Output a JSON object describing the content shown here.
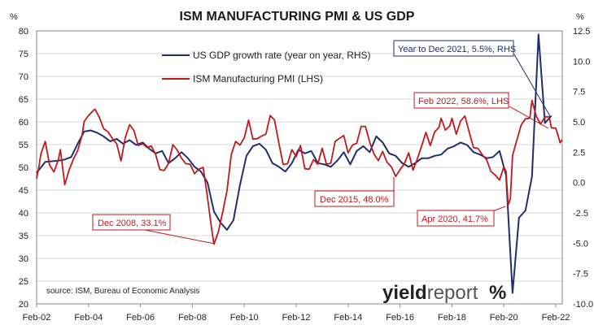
{
  "chart_data": {
    "type": "line",
    "title": "ISM MANUFACTURING PMI & US GDP",
    "left_unit": "%",
    "right_unit": "%",
    "x_labels": [
      "Feb-02",
      "Feb-04",
      "Feb-06",
      "Feb-08",
      "Feb-10",
      "Feb-12",
      "Feb-14",
      "Feb-16",
      "Feb-18",
      "Feb-20",
      "Feb-22"
    ],
    "x_range": [
      "2002-02",
      "2022-05"
    ],
    "ylim_left": [
      20,
      80
    ],
    "yticks_left": [
      20,
      25,
      30,
      35,
      40,
      45,
      50,
      55,
      60,
      65,
      70,
      75,
      80
    ],
    "ylim_right": [
      -10,
      12.5
    ],
    "yticks_right": [
      "-10.0",
      "-7.5",
      "-5.0",
      "-2.5",
      "0.0",
      "2.5",
      "5.0",
      "7.5",
      "10.0",
      "12.5"
    ],
    "grid": true,
    "series": [
      {
        "name": "US GDP growth rate (year on year, RHS)",
        "axis": "right",
        "color": "#1f2f6b",
        "points": [
          [
            "2002-02",
            0.8
          ],
          [
            "2002-06",
            1.7
          ],
          [
            "2002-12",
            1.8
          ],
          [
            "2003-03",
            1.9
          ],
          [
            "2003-06",
            2.1
          ],
          [
            "2003-09",
            3.2
          ],
          [
            "2003-12",
            4.2
          ],
          [
            "2004-03",
            4.3
          ],
          [
            "2004-06",
            4.1
          ],
          [
            "2004-09",
            3.8
          ],
          [
            "2004-12",
            3.4
          ],
          [
            "2005-03",
            3.6
          ],
          [
            "2005-06",
            3.2
          ],
          [
            "2005-09",
            3.5
          ],
          [
            "2005-12",
            3.1
          ],
          [
            "2006-03",
            3.3
          ],
          [
            "2006-06",
            2.8
          ],
          [
            "2006-09",
            2.4
          ],
          [
            "2006-12",
            2.6
          ],
          [
            "2007-03",
            1.6
          ],
          [
            "2007-06",
            2.0
          ],
          [
            "2007-09",
            2.5
          ],
          [
            "2007-12",
            2.0
          ],
          [
            "2008-03",
            1.3
          ],
          [
            "2008-06",
            0.9
          ],
          [
            "2008-09",
            0.0
          ],
          [
            "2008-12",
            -2.4
          ],
          [
            "2009-03",
            -3.3
          ],
          [
            "2009-06",
            -3.9
          ],
          [
            "2009-09",
            -3.1
          ],
          [
            "2009-12",
            -0.2
          ],
          [
            "2010-03",
            2.2
          ],
          [
            "2010-06",
            3.0
          ],
          [
            "2010-09",
            3.2
          ],
          [
            "2010-12",
            2.7
          ],
          [
            "2011-03",
            1.6
          ],
          [
            "2011-06",
            1.3
          ],
          [
            "2011-09",
            0.9
          ],
          [
            "2011-12",
            1.6
          ],
          [
            "2012-03",
            2.7
          ],
          [
            "2012-06",
            2.4
          ],
          [
            "2012-09",
            2.6
          ],
          [
            "2012-12",
            1.6
          ],
          [
            "2013-03",
            1.5
          ],
          [
            "2013-06",
            1.3
          ],
          [
            "2013-09",
            1.8
          ],
          [
            "2013-12",
            2.5
          ],
          [
            "2014-03",
            1.5
          ],
          [
            "2014-06",
            2.6
          ],
          [
            "2014-09",
            3.0
          ],
          [
            "2014-12",
            2.5
          ],
          [
            "2015-03",
            3.8
          ],
          [
            "2015-06",
            3.3
          ],
          [
            "2015-09",
            2.4
          ],
          [
            "2015-12",
            2.2
          ],
          [
            "2016-03",
            1.6
          ],
          [
            "2016-06",
            1.3
          ],
          [
            "2016-09",
            1.6
          ],
          [
            "2016-12",
            2.0
          ],
          [
            "2017-03",
            2.0
          ],
          [
            "2017-06",
            2.2
          ],
          [
            "2017-09",
            2.3
          ],
          [
            "2017-12",
            2.8
          ],
          [
            "2018-03",
            3.0
          ],
          [
            "2018-06",
            3.3
          ],
          [
            "2018-09",
            3.1
          ],
          [
            "2018-12",
            2.5
          ],
          [
            "2019-03",
            2.3
          ],
          [
            "2019-06",
            2.0
          ],
          [
            "2019-09",
            2.1
          ],
          [
            "2019-12",
            2.6
          ],
          [
            "2020-03",
            0.6
          ],
          [
            "2020-06",
            -9.1
          ],
          [
            "2020-09",
            -2.9
          ],
          [
            "2020-12",
            -2.3
          ],
          [
            "2021-03",
            0.5
          ],
          [
            "2021-06",
            12.2
          ],
          [
            "2021-09",
            4.9
          ],
          [
            "2021-12",
            5.5
          ]
        ]
      },
      {
        "name": "ISM Manufacturing PMI (LHS)",
        "axis": "left",
        "color": "#c0191e",
        "points": [
          [
            "2002-02",
            47.5
          ],
          [
            "2002-03",
            50.0
          ],
          [
            "2002-04",
            53.0
          ],
          [
            "2002-06",
            55.7
          ],
          [
            "2002-08",
            50.5
          ],
          [
            "2002-10",
            49.0
          ],
          [
            "2002-12",
            51.6
          ],
          [
            "2003-01",
            53.9
          ],
          [
            "2003-03",
            46.2
          ],
          [
            "2003-05",
            49.4
          ],
          [
            "2003-07",
            51.8
          ],
          [
            "2003-09",
            53.7
          ],
          [
            "2003-11",
            57.0
          ],
          [
            "2003-12",
            60.1
          ],
          [
            "2004-02",
            61.4
          ],
          [
            "2004-04",
            62.4
          ],
          [
            "2004-05",
            62.8
          ],
          [
            "2004-07",
            61.0
          ],
          [
            "2004-09",
            58.5
          ],
          [
            "2004-11",
            57.8
          ],
          [
            "2005-01",
            56.4
          ],
          [
            "2005-03",
            55.2
          ],
          [
            "2005-05",
            51.4
          ],
          [
            "2005-07",
            56.6
          ],
          [
            "2005-09",
            59.4
          ],
          [
            "2005-11",
            58.1
          ],
          [
            "2006-01",
            54.8
          ],
          [
            "2006-03",
            55.2
          ],
          [
            "2006-05",
            54.4
          ],
          [
            "2006-07",
            54.7
          ],
          [
            "2006-09",
            52.9
          ],
          [
            "2006-11",
            49.5
          ],
          [
            "2007-01",
            49.3
          ],
          [
            "2007-03",
            50.9
          ],
          [
            "2007-05",
            55.0
          ],
          [
            "2007-07",
            53.8
          ],
          [
            "2007-09",
            52.0
          ],
          [
            "2007-11",
            50.8
          ],
          [
            "2008-01",
            50.7
          ],
          [
            "2008-03",
            48.6
          ],
          [
            "2008-05",
            49.6
          ],
          [
            "2008-07",
            50.0
          ],
          [
            "2008-09",
            43.4
          ],
          [
            "2008-11",
            36.2
          ],
          [
            "2008-12",
            33.1
          ],
          [
            "2009-02",
            35.8
          ],
          [
            "2009-04",
            40.1
          ],
          [
            "2009-06",
            44.8
          ],
          [
            "2009-08",
            52.9
          ],
          [
            "2009-10",
            55.7
          ],
          [
            "2009-12",
            54.9
          ],
          [
            "2010-02",
            56.5
          ],
          [
            "2010-04",
            60.4
          ],
          [
            "2010-06",
            56.2
          ],
          [
            "2010-08",
            56.3
          ],
          [
            "2010-10",
            56.9
          ],
          [
            "2010-12",
            57.3
          ],
          [
            "2011-02",
            61.4
          ],
          [
            "2011-04",
            60.4
          ],
          [
            "2011-06",
            55.3
          ],
          [
            "2011-08",
            50.6
          ],
          [
            "2011-10",
            50.8
          ],
          [
            "2011-12",
            53.9
          ],
          [
            "2012-02",
            52.4
          ],
          [
            "2012-04",
            54.8
          ],
          [
            "2012-06",
            49.7
          ],
          [
            "2012-08",
            49.6
          ],
          [
            "2012-10",
            51.7
          ],
          [
            "2012-12",
            50.7
          ],
          [
            "2013-02",
            54.2
          ],
          [
            "2013-04",
            50.7
          ],
          [
            "2013-06",
            50.9
          ],
          [
            "2013-08",
            55.7
          ],
          [
            "2013-10",
            56.4
          ],
          [
            "2013-12",
            57.0
          ],
          [
            "2014-02",
            53.2
          ],
          [
            "2014-04",
            54.9
          ],
          [
            "2014-06",
            55.3
          ],
          [
            "2014-08",
            59.0
          ],
          [
            "2014-10",
            59.0
          ],
          [
            "2014-12",
            55.5
          ],
          [
            "2015-02",
            52.9
          ],
          [
            "2015-04",
            51.5
          ],
          [
            "2015-06",
            53.5
          ],
          [
            "2015-08",
            51.1
          ],
          [
            "2015-10",
            50.1
          ],
          [
            "2015-12",
            48.0
          ],
          [
            "2016-02",
            49.5
          ],
          [
            "2016-04",
            50.8
          ],
          [
            "2016-06",
            53.2
          ],
          [
            "2016-08",
            49.4
          ],
          [
            "2016-10",
            51.9
          ],
          [
            "2016-12",
            54.7
          ],
          [
            "2017-02",
            57.7
          ],
          [
            "2017-04",
            54.8
          ],
          [
            "2017-06",
            57.8
          ],
          [
            "2017-08",
            58.8
          ],
          [
            "2017-09",
            60.8
          ],
          [
            "2017-11",
            58.2
          ],
          [
            "2018-01",
            59.1
          ],
          [
            "2018-02",
            60.8
          ],
          [
            "2018-04",
            57.3
          ],
          [
            "2018-06",
            60.2
          ],
          [
            "2018-08",
            61.3
          ],
          [
            "2018-10",
            57.7
          ],
          [
            "2018-12",
            54.3
          ],
          [
            "2019-02",
            54.2
          ],
          [
            "2019-04",
            52.8
          ],
          [
            "2019-06",
            51.7
          ],
          [
            "2019-08",
            49.1
          ],
          [
            "2019-10",
            48.3
          ],
          [
            "2019-12",
            47.2
          ],
          [
            "2020-02",
            50.1
          ],
          [
            "2020-03",
            49.1
          ],
          [
            "2020-04",
            41.7
          ],
          [
            "2020-05",
            43.1
          ],
          [
            "2020-06",
            52.6
          ],
          [
            "2020-08",
            56.0
          ],
          [
            "2020-10",
            59.3
          ],
          [
            "2020-12",
            60.7
          ],
          [
            "2021-02",
            60.8
          ],
          [
            "2021-03",
            64.7
          ],
          [
            "2021-05",
            61.2
          ],
          [
            "2021-07",
            59.5
          ],
          [
            "2021-09",
            61.1
          ],
          [
            "2021-11",
            61.1
          ],
          [
            "2021-12",
            58.7
          ],
          [
            "2022-02",
            58.6
          ],
          [
            "2022-03",
            57.1
          ],
          [
            "2022-04",
            55.4
          ],
          [
            "2022-05",
            56.1
          ]
        ]
      }
    ],
    "annotations": [
      {
        "text": "Dec 2008, 33.1%",
        "color": "#c0191e"
      },
      {
        "text": "Dec 2015, 48.0%",
        "color": "#c0191e"
      },
      {
        "text": "Apr 2020, 41.7%",
        "color": "#c0191e"
      },
      {
        "text": "Feb 2022, 58.6%, LHS",
        "color": "#c0191e"
      },
      {
        "text": "Year to Dec 2021, 5.5%, RHS",
        "color": "#1f2f6b"
      }
    ],
    "source": "source: ISM, Bureau of Economic Analysis",
    "brand": {
      "main": "yield",
      "accent": "report",
      "symbol": "%"
    }
  }
}
